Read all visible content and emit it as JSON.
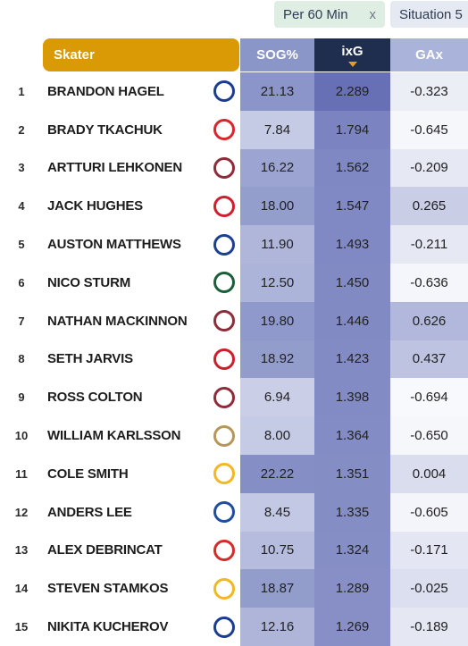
{
  "filters": {
    "per60_label": "Per 60 Min",
    "per60_close": "x",
    "situation_label": "Situation 5"
  },
  "columns": {
    "skater": "Skater",
    "sog": "SOG%",
    "ixg": "ixG",
    "gax": "GAx"
  },
  "rows": [
    {
      "rank": "1",
      "name": "BRANDON HAGEL",
      "team_icon": "lightning-logo-icon",
      "logo_color": "#1b3d8f",
      "sog": "21.13",
      "sog_bg": "#8b95c9",
      "ixg": "2.289",
      "ixg_bg": "#6870b5",
      "gax": "-0.323",
      "gax_bg": "#eceef6"
    },
    {
      "rank": "2",
      "name": "BRADY TKACHUK",
      "team_icon": "senators-logo-icon",
      "logo_color": "#d7262f",
      "sog": "7.84",
      "sog_bg": "#c6cbe5",
      "ixg": "1.794",
      "ixg_bg": "#7b84c0",
      "gax": "-0.645",
      "gax_bg": "#f6f7fb"
    },
    {
      "rank": "3",
      "name": "ARTTURI LEHKONEN",
      "team_icon": "avalanche-logo-icon",
      "logo_color": "#8e2c3b",
      "sog": "16.22",
      "sog_bg": "#9ca5d1",
      "ixg": "1.562",
      "ixg_bg": "#7f88c3",
      "gax": "-0.209",
      "gax_bg": "#e6e8f4"
    },
    {
      "rank": "4",
      "name": "JACK HUGHES",
      "team_icon": "devils-logo-icon",
      "logo_color": "#cf1f2f",
      "sog": "18.00",
      "sog_bg": "#949ecd",
      "ixg": "1.547",
      "ixg_bg": "#8089c3",
      "gax": "0.265",
      "gax_bg": "#c9cde6"
    },
    {
      "rank": "5",
      "name": "AUSTON MATTHEWS",
      "team_icon": "maple-leafs-logo-icon",
      "logo_color": "#1c3f8f",
      "sog": "11.90",
      "sog_bg": "#afb6da",
      "ixg": "1.493",
      "ixg_bg": "#8189c4",
      "gax": "-0.211",
      "gax_bg": "#e6e8f4"
    },
    {
      "rank": "6",
      "name": "NICO STURM",
      "team_icon": "wild-logo-icon",
      "logo_color": "#1b5e3a",
      "sog": "12.50",
      "sog_bg": "#adb4d9",
      "ixg": "1.450",
      "ixg_bg": "#828ac4",
      "gax": "-0.636",
      "gax_bg": "#f5f6fb"
    },
    {
      "rank": "7",
      "name": "NATHAN MACKINNON",
      "team_icon": "avalanche-logo-icon",
      "logo_color": "#8e2c3b",
      "sog": "19.80",
      "sog_bg": "#8f99cb",
      "ixg": "1.446",
      "ixg_bg": "#828ac4",
      "gax": "0.626",
      "gax_bg": "#b1b8db"
    },
    {
      "rank": "8",
      "name": "SETH JARVIS",
      "team_icon": "hurricanes-logo-icon",
      "logo_color": "#cc1f2e",
      "sog": "18.92",
      "sog_bg": "#939dcc",
      "ixg": "1.423",
      "ixg_bg": "#838bc4",
      "gax": "0.437",
      "gax_bg": "#bdc3e0"
    },
    {
      "rank": "9",
      "name": "ROSS COLTON",
      "team_icon": "avalanche-logo-icon",
      "logo_color": "#8e2c3b",
      "sog": "6.94",
      "sog_bg": "#cacee7",
      "ixg": "1.398",
      "ixg_bg": "#838bc5",
      "gax": "-0.694",
      "gax_bg": "#f8f9fc"
    },
    {
      "rank": "10",
      "name": "WILLIAM KARLSSON",
      "team_icon": "golden-knights-logo-icon",
      "logo_color": "#b4975a",
      "sog": "8.00",
      "sog_bg": "#c5cae5",
      "ixg": "1.364",
      "ixg_bg": "#848cc5",
      "gax": "-0.650",
      "gax_bg": "#f6f7fb"
    },
    {
      "rank": "11",
      "name": "COLE SMITH",
      "team_icon": "predators-logo-icon",
      "logo_color": "#f2b823",
      "sog": "22.22",
      "sog_bg": "#858fc6",
      "ixg": "1.351",
      "ixg_bg": "#858dc5",
      "gax": "0.004",
      "gax_bg": "#dadded"
    },
    {
      "rank": "12",
      "name": "ANDERS LEE",
      "team_icon": "islanders-logo-icon",
      "logo_color": "#1f4e9e",
      "sog": "8.45",
      "sog_bg": "#c3c8e4",
      "ixg": "1.335",
      "ixg_bg": "#858dc5",
      "gax": "-0.605",
      "gax_bg": "#f4f5fa"
    },
    {
      "rank": "13",
      "name": "ALEX DEBRINCAT",
      "team_icon": "red-wings-logo-icon",
      "logo_color": "#d52b2b",
      "sog": "10.75",
      "sog_bg": "#b5bcdd",
      "ixg": "1.324",
      "ixg_bg": "#868ec6",
      "gax": "-0.171",
      "gax_bg": "#e4e6f3"
    },
    {
      "rank": "14",
      "name": "STEVEN STAMKOS",
      "team_icon": "predators-logo-icon",
      "logo_color": "#f2b823",
      "sog": "18.87",
      "sog_bg": "#939dcc",
      "ixg": "1.289",
      "ixg_bg": "#878fc6",
      "gax": "-0.025",
      "gax_bg": "#dcdfef"
    },
    {
      "rank": "15",
      "name": "NIKITA KUCHEROV",
      "team_icon": "lightning-logo-icon",
      "logo_color": "#1b3d8f",
      "sog": "12.16",
      "sog_bg": "#aeb5d9",
      "ixg": "1.269",
      "ixg_bg": "#888fc6",
      "gax": "-0.189",
      "gax_bg": "#e5e7f3"
    }
  ]
}
